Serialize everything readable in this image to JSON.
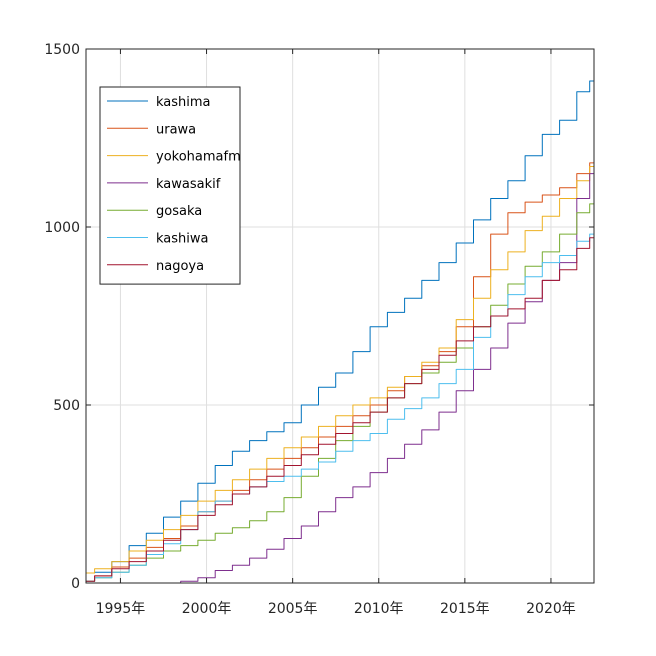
{
  "chart_data": {
    "type": "line",
    "title": "",
    "xlabel": "",
    "ylabel": "",
    "xlim": [
      1993.0,
      2022.5
    ],
    "ylim": [
      0,
      1500
    ],
    "grid": true,
    "legend_position": "top-left",
    "x_ticks": [
      {
        "value": 1995,
        "label": "1995年"
      },
      {
        "value": 2000,
        "label": "2000年"
      },
      {
        "value": 2005,
        "label": "2005年"
      },
      {
        "value": 2010,
        "label": "2010年"
      },
      {
        "value": 2015,
        "label": "2015年"
      },
      {
        "value": 2020,
        "label": "2020年"
      }
    ],
    "y_ticks": [
      {
        "value": 0,
        "label": "0"
      },
      {
        "value": 500,
        "label": "500"
      },
      {
        "value": 1000,
        "label": "1000"
      },
      {
        "value": 1500,
        "label": "1500"
      }
    ],
    "series": [
      {
        "name": "kashima",
        "color": "#0072BD",
        "points": [
          [
            1993,
            28
          ],
          [
            1994,
            30
          ],
          [
            1995,
            60
          ],
          [
            1996,
            105
          ],
          [
            1997,
            140
          ],
          [
            1998,
            185
          ],
          [
            1999,
            230
          ],
          [
            2000,
            280
          ],
          [
            2001,
            330
          ],
          [
            2002,
            370
          ],
          [
            2003,
            400
          ],
          [
            2004,
            425
          ],
          [
            2005,
            450
          ],
          [
            2006,
            500
          ],
          [
            2007,
            550
          ],
          [
            2008,
            590
          ],
          [
            2009,
            650
          ],
          [
            2010,
            720
          ],
          [
            2011,
            760
          ],
          [
            2012,
            800
          ],
          [
            2013,
            850
          ],
          [
            2014,
            900
          ],
          [
            2015,
            955
          ],
          [
            2016,
            1020
          ],
          [
            2017,
            1080
          ],
          [
            2018,
            1130
          ],
          [
            2019,
            1200
          ],
          [
            2020,
            1260
          ],
          [
            2021,
            1300
          ],
          [
            2022,
            1380
          ],
          [
            2022.5,
            1410
          ]
        ]
      },
      {
        "name": "urawa",
        "color": "#D95319",
        "points": [
          [
            1993,
            5
          ],
          [
            1994,
            20
          ],
          [
            1995,
            45
          ],
          [
            1996,
            70
          ],
          [
            1997,
            100
          ],
          [
            1998,
            125
          ],
          [
            1999,
            160
          ],
          [
            2000,
            200
          ],
          [
            2001,
            230
          ],
          [
            2002,
            260
          ],
          [
            2003,
            290
          ],
          [
            2004,
            320
          ],
          [
            2005,
            350
          ],
          [
            2006,
            380
          ],
          [
            2007,
            410
          ],
          [
            2008,
            440
          ],
          [
            2009,
            470
          ],
          [
            2010,
            500
          ],
          [
            2011,
            540
          ],
          [
            2012,
            580
          ],
          [
            2013,
            610
          ],
          [
            2014,
            650
          ],
          [
            2015,
            720
          ],
          [
            2016,
            860
          ],
          [
            2017,
            980
          ],
          [
            2018,
            1040
          ],
          [
            2019,
            1070
          ],
          [
            2020,
            1090
          ],
          [
            2021,
            1110
          ],
          [
            2022,
            1150
          ],
          [
            2022.5,
            1180
          ]
        ]
      },
      {
        "name": "yokohamafm",
        "color": "#EDB120",
        "points": [
          [
            1993,
            28
          ],
          [
            1994,
            40
          ],
          [
            1995,
            60
          ],
          [
            1996,
            90
          ],
          [
            1997,
            120
          ],
          [
            1998,
            150
          ],
          [
            1999,
            190
          ],
          [
            2000,
            230
          ],
          [
            2001,
            260
          ],
          [
            2002,
            290
          ],
          [
            2003,
            320
          ],
          [
            2004,
            350
          ],
          [
            2005,
            380
          ],
          [
            2006,
            410
          ],
          [
            2007,
            440
          ],
          [
            2008,
            470
          ],
          [
            2009,
            500
          ],
          [
            2010,
            520
          ],
          [
            2011,
            550
          ],
          [
            2012,
            580
          ],
          [
            2013,
            620
          ],
          [
            2014,
            660
          ],
          [
            2015,
            740
          ],
          [
            2016,
            800
          ],
          [
            2017,
            880
          ],
          [
            2018,
            930
          ],
          [
            2019,
            990
          ],
          [
            2020,
            1030
          ],
          [
            2021,
            1080
          ],
          [
            2022,
            1130
          ],
          [
            2022.5,
            1170
          ]
        ]
      },
      {
        "name": "kawasakif",
        "color": "#7E2F8E",
        "points": [
          [
            1993,
            0
          ],
          [
            1998,
            0
          ],
          [
            1999,
            5
          ],
          [
            2000,
            15
          ],
          [
            2001,
            35
          ],
          [
            2002,
            50
          ],
          [
            2003,
            70
          ],
          [
            2004,
            95
          ],
          [
            2005,
            125
          ],
          [
            2006,
            160
          ],
          [
            2007,
            200
          ],
          [
            2008,
            240
          ],
          [
            2009,
            270
          ],
          [
            2010,
            310
          ],
          [
            2011,
            350
          ],
          [
            2012,
            390
          ],
          [
            2013,
            430
          ],
          [
            2014,
            480
          ],
          [
            2015,
            540
          ],
          [
            2016,
            600
          ],
          [
            2017,
            660
          ],
          [
            2018,
            730
          ],
          [
            2019,
            790
          ],
          [
            2020,
            850
          ],
          [
            2021,
            900
          ],
          [
            2022,
            1080
          ],
          [
            2022.5,
            1150
          ]
        ]
      },
      {
        "name": "gosaka",
        "color": "#77AC30",
        "points": [
          [
            1993,
            5
          ],
          [
            1994,
            15
          ],
          [
            1995,
            30
          ],
          [
            1996,
            50
          ],
          [
            1997,
            70
          ],
          [
            1998,
            90
          ],
          [
            1999,
            105
          ],
          [
            2000,
            120
          ],
          [
            2001,
            140
          ],
          [
            2002,
            155
          ],
          [
            2003,
            175
          ],
          [
            2004,
            200
          ],
          [
            2005,
            240
          ],
          [
            2006,
            300
          ],
          [
            2007,
            350
          ],
          [
            2008,
            400
          ],
          [
            2009,
            440
          ],
          [
            2010,
            480
          ],
          [
            2011,
            520
          ],
          [
            2012,
            560
          ],
          [
            2013,
            590
          ],
          [
            2014,
            620
          ],
          [
            2015,
            660
          ],
          [
            2016,
            720
          ],
          [
            2017,
            780
          ],
          [
            2018,
            840
          ],
          [
            2019,
            890
          ],
          [
            2020,
            930
          ],
          [
            2021,
            980
          ],
          [
            2022,
            1040
          ],
          [
            2022.5,
            1065
          ]
        ]
      },
      {
        "name": "kashiwa",
        "color": "#4DBEEE",
        "points": [
          [
            1993,
            5
          ],
          [
            1994,
            15
          ],
          [
            1995,
            30
          ],
          [
            1996,
            50
          ],
          [
            1997,
            80
          ],
          [
            1998,
            110
          ],
          [
            1999,
            150
          ],
          [
            2000,
            200
          ],
          [
            2001,
            230
          ],
          [
            2002,
            250
          ],
          [
            2003,
            270
          ],
          [
            2004,
            285
          ],
          [
            2005,
            300
          ],
          [
            2006,
            320
          ],
          [
            2007,
            340
          ],
          [
            2008,
            370
          ],
          [
            2009,
            400
          ],
          [
            2010,
            420
          ],
          [
            2011,
            460
          ],
          [
            2012,
            490
          ],
          [
            2013,
            520
          ],
          [
            2014,
            560
          ],
          [
            2015,
            600
          ],
          [
            2016,
            690
          ],
          [
            2017,
            750
          ],
          [
            2018,
            810
          ],
          [
            2019,
            860
          ],
          [
            2020,
            900
          ],
          [
            2021,
            920
          ],
          [
            2022,
            960
          ],
          [
            2022.5,
            980
          ]
        ]
      },
      {
        "name": "nagoya",
        "color": "#A2142F",
        "points": [
          [
            1993,
            5
          ],
          [
            1994,
            20
          ],
          [
            1995,
            40
          ],
          [
            1996,
            60
          ],
          [
            1997,
            90
          ],
          [
            1998,
            120
          ],
          [
            1999,
            150
          ],
          [
            2000,
            190
          ],
          [
            2001,
            220
          ],
          [
            2002,
            250
          ],
          [
            2003,
            270
          ],
          [
            2004,
            300
          ],
          [
            2005,
            330
          ],
          [
            2006,
            360
          ],
          [
            2007,
            390
          ],
          [
            2008,
            420
          ],
          [
            2009,
            450
          ],
          [
            2010,
            480
          ],
          [
            2011,
            520
          ],
          [
            2012,
            560
          ],
          [
            2013,
            600
          ],
          [
            2014,
            640
          ],
          [
            2015,
            680
          ],
          [
            2016,
            720
          ],
          [
            2017,
            750
          ],
          [
            2018,
            770
          ],
          [
            2019,
            800
          ],
          [
            2020,
            850
          ],
          [
            2021,
            880
          ],
          [
            2022,
            940
          ],
          [
            2022.5,
            970
          ]
        ]
      }
    ]
  }
}
